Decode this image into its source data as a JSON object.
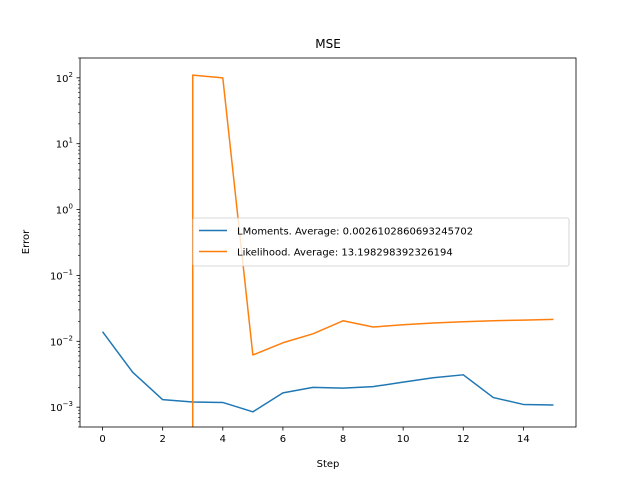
{
  "chart_data": {
    "type": "line",
    "title": "MSE",
    "xlabel": "Step",
    "ylabel": "Error",
    "yscale": "log",
    "xlim": [
      -0.75,
      15.75
    ],
    "ylim": [
      0.0005,
      200
    ],
    "grid": false,
    "legend_position": "center-right",
    "x_ticks": [
      0,
      2,
      4,
      6,
      8,
      10,
      12,
      14
    ],
    "x_tick_labels": [
      "0",
      "2",
      "4",
      "6",
      "8",
      "10",
      "12",
      "14"
    ],
    "y_ticks": [
      0.001,
      0.01,
      0.1,
      1,
      10,
      100
    ],
    "y_tick_labels": [
      {
        "base": "10",
        "exp": "−3"
      },
      {
        "base": "10",
        "exp": "−2"
      },
      {
        "base": "10",
        "exp": "−1"
      },
      {
        "base": "10",
        "exp": "0"
      },
      {
        "base": "10",
        "exp": "1"
      },
      {
        "base": "10",
        "exp": "2"
      }
    ],
    "series": [
      {
        "name": "LMoments. Average: 0.0026102860693245702",
        "color": "#1f77b4",
        "x": [
          0,
          1,
          2,
          3,
          4,
          5,
          6,
          7,
          8,
          9,
          10,
          11,
          12,
          13,
          14,
          15
        ],
        "values": [
          0.014,
          0.0034,
          0.0013,
          0.0012,
          0.00118,
          0.00085,
          0.00165,
          0.002,
          0.00195,
          0.00205,
          0.0024,
          0.0028,
          0.0031,
          0.0014,
          0.0011,
          0.00108
        ]
      },
      {
        "name": "Likelihood. Average: 13.198298392326194",
        "color": "#ff7f0e",
        "x": [
          3,
          3,
          4,
          5,
          6,
          7,
          8,
          9,
          10,
          11,
          12,
          13,
          14,
          15
        ],
        "values": [
          0.0001,
          110,
          100,
          0.0062,
          0.0095,
          0.013,
          0.0205,
          0.0165,
          0.0178,
          0.019,
          0.0198,
          0.0205,
          0.021,
          0.0215
        ]
      }
    ]
  }
}
